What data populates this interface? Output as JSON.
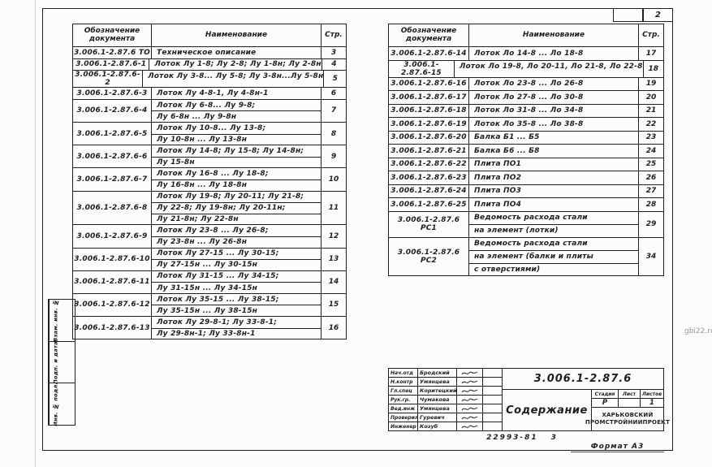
{
  "page": {
    "number": "2",
    "watermark": "gbi22.ru",
    "order_code": "22993-81",
    "order_suffix": "3",
    "format_label": "Формат А3"
  },
  "colors": {
    "ink": "#1f1f1f",
    "paper": "#fcfcfa",
    "watermark_gray": "#979797"
  },
  "columns": {
    "designation": "Обозначение документа",
    "name": "Наименование",
    "page": "Стр."
  },
  "tables": [
    {
      "id": "toc-left",
      "rows": [
        {
          "doc": "3.006.1-2.87.6 ТО",
          "lines": [
            "Техническое описание"
          ],
          "page": "3"
        },
        {
          "doc": "3.006.1-2.87.6-1",
          "lines": [
            "Лоток Лу 1-8; Лу 2-8; Лу 1-8н; Лу 2-8н"
          ],
          "page": "4"
        },
        {
          "doc": "3.006.1-2.87.6-2",
          "lines": [
            "Лоток Лу 3-8... Лу 5-8; Лу 3-8н...Лу 5-8н"
          ],
          "page": "5"
        },
        {
          "doc": "3.006.1-2.87.6-3",
          "lines": [
            "Лоток Лу 4-8-1, Лу 4-8н-1"
          ],
          "page": "6"
        },
        {
          "doc": "3.006.1-2.87.6-4",
          "lines": [
            "Лоток Лу 6-8... Лу 9-8;",
            "Лу 6-8н ... Лу 9-8н"
          ],
          "page": "7"
        },
        {
          "doc": "3.006.1-2.87.6-5",
          "lines": [
            "Лоток Лу 10-8... Лу 13-8;",
            "Лу 10-8н ... Лу 13-8н"
          ],
          "page": "8"
        },
        {
          "doc": "3.006.1-2.87.6-6",
          "lines": [
            "Лоток Лу 14-8; Лу 15-8; Лу 14-8н;",
            "Лу 15-8н"
          ],
          "page": "9"
        },
        {
          "doc": "3.006.1-2.87.6-7",
          "lines": [
            "Лоток Лу 16-8 ... Лу 18-8;",
            "Лу 16-8н ... Лу 18-8н"
          ],
          "page": "10"
        },
        {
          "doc": "3.006.1-2.87.6-8",
          "lines": [
            "Лоток Лу 19-8; Лу 20-11; Лу 21-8;",
            "Лу 22-8; Лу 19-8н; Лу 20-11н;",
            "Лу 21-8н; Лу 22-8н"
          ],
          "page": "11"
        },
        {
          "doc": "3.006.1-2.87.6-9",
          "lines": [
            "Лоток Лу 23-8 ... Лу 26-8;",
            "Лу 23-8н ... Лу 26-8н"
          ],
          "page": "12"
        },
        {
          "doc": "3.006.1-2.87.6-10",
          "lines": [
            "Лоток Лу 27-15 ... Лу 30-15;",
            "Лу 27-15н ... Лу 30-15н"
          ],
          "page": "13"
        },
        {
          "doc": "3.006.1-2.87.6-11",
          "lines": [
            "Лоток Лу 31-15 ... Лу 34-15;",
            "Лу 31-15н ... Лу 34-15н"
          ],
          "page": "14"
        },
        {
          "doc": "3.006.1-2.87.6-12",
          "lines": [
            "Лоток Лу 35-15 ... Лу 38-15;",
            "Лу 35-15н ... Лу 38-15н"
          ],
          "page": "15"
        },
        {
          "doc": "3.006.1-2.87.6-13",
          "lines": [
            "Лоток Лу 29-8-1; Лу 33-8-1;",
            "Лу 29-8н-1; Лу 33-8н-1"
          ],
          "page": "16"
        }
      ]
    },
    {
      "id": "toc-right",
      "rows": [
        {
          "doc": "3.006.1-2.87.6-14",
          "lines": [
            "Лоток Ло 14-8 ... Ло 18-8"
          ],
          "page": "17"
        },
        {
          "doc": "3.006.1-2.87.6-15",
          "lines": [
            "Лоток Ло 19-8, Ло 20-11, Ло 21-8, Ло 22-8"
          ],
          "page": "18"
        },
        {
          "doc": "3.006.1-2.87.6-16",
          "lines": [
            "Лоток Ло 23-8 ... Ло 26-8"
          ],
          "page": "19"
        },
        {
          "doc": "3.006.1-2.87.6-17",
          "lines": [
            "Лоток Ло 27-8 ... Ло 30-8"
          ],
          "page": "20"
        },
        {
          "doc": "3.006.1-2.87.6-18",
          "lines": [
            "Лоток Ло 31-8 ... Ло 34-8"
          ],
          "page": "21"
        },
        {
          "doc": "3.006.1-2.87.6-19",
          "lines": [
            "Лоток Ло 35-8 ... Ло 38-8"
          ],
          "page": "22"
        },
        {
          "doc": "3.006.1-2.87.6-20",
          "lines": [
            "Балка Б1 ... Б5"
          ],
          "page": "23"
        },
        {
          "doc": "3.006.1-2.87.6-21",
          "lines": [
            "Балка Б6 ... Б8"
          ],
          "page": "24"
        },
        {
          "doc": "3.006.1-2.87.6-22",
          "lines": [
            "Плита ПО1"
          ],
          "page": "25"
        },
        {
          "doc": "3.006.1-2.87.6-23",
          "lines": [
            "Плита ПО2"
          ],
          "page": "26"
        },
        {
          "doc": "3.006.1-2.87.6-24",
          "lines": [
            "Плита ПО3"
          ],
          "page": "27"
        },
        {
          "doc": "3.006.1-2.87.6-25",
          "lines": [
            "Плита ПО4"
          ],
          "page": "28"
        },
        {
          "doc": "3.006.1-2.87.6 РС1",
          "lines": [
            "Ведомость расхода стали",
            "на элемент (лотки)"
          ],
          "page": "29"
        },
        {
          "doc": "3.006.1-2.87.6 РС2",
          "lines": [
            "Ведомость расхода стали",
            "на элемент (балки и плиты",
            "с отверстиями)"
          ],
          "page": "34"
        }
      ]
    }
  ],
  "titleblock": {
    "doc_number": "3.006.1-2.87.6",
    "title": "Содержание",
    "org": "ХАРЬКОВСКИЙ ПРОМСТРОЙНИИПРОЕКТ",
    "stage_headers": [
      "Стадия",
      "Лист",
      "Листов"
    ],
    "stage_values": [
      "Р",
      "",
      "1"
    ],
    "signers": [
      {
        "role": "Нач.отд",
        "name": "Бродский"
      },
      {
        "role": "Н.контр",
        "name": "Умянцева"
      },
      {
        "role": "Гл.спец",
        "name": "Коритецкий"
      },
      {
        "role": "Рук.гр.",
        "name": "Чумакова"
      },
      {
        "role": "Вед.инж",
        "name": "Умянцева"
      },
      {
        "role": "Проверил",
        "name": "Гуревич"
      },
      {
        "role": "Инженер",
        "name": "Козуб"
      }
    ]
  },
  "side_strip": {
    "labels": [
      "Взам. инв. №",
      "Подп. и дата",
      "Инв. № подл."
    ]
  }
}
